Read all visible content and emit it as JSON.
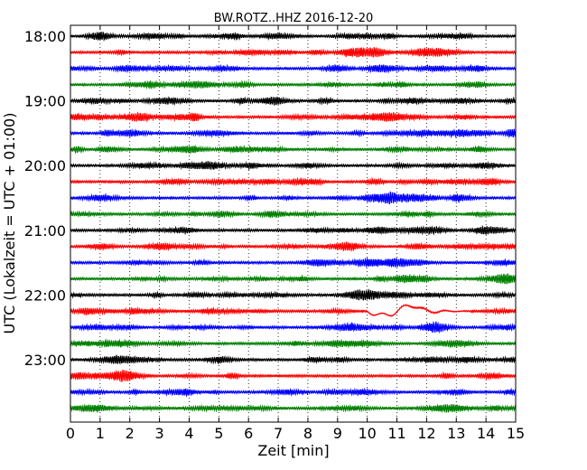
{
  "chart_data": {
    "type": "line",
    "title": "BW.ROTZ..HHZ 2016-12-20",
    "xlabel": "Zeit  [min]",
    "ylabel": "UTC (Lokalzeit = UTC + 01:00)",
    "xlim": [
      0,
      15
    ],
    "x_ticks": [
      "0",
      "1",
      "2",
      "3",
      "4",
      "5",
      "6",
      "7",
      "8",
      "9",
      "10",
      "11",
      "12",
      "13",
      "14",
      "15"
    ],
    "y_tick_labels": [
      "18:00",
      "19:00",
      "20:00",
      "21:00",
      "22:00",
      "23:00"
    ],
    "y_tick_rows": [
      0,
      4,
      8,
      12,
      16,
      20
    ],
    "trace_colors": [
      "#000000",
      "#ff0000",
      "#0000ff",
      "#008000"
    ],
    "traces": [
      {
        "start": "18:00",
        "event": false
      },
      {
        "start": "18:15",
        "event": false
      },
      {
        "start": "18:30",
        "event": false
      },
      {
        "start": "18:45",
        "event": false
      },
      {
        "start": "19:00",
        "event": false
      },
      {
        "start": "19:15",
        "event": false
      },
      {
        "start": "19:30",
        "event": false
      },
      {
        "start": "19:45",
        "event": false
      },
      {
        "start": "20:00",
        "event": false
      },
      {
        "start": "20:15",
        "event": false
      },
      {
        "start": "20:30",
        "event": false
      },
      {
        "start": "20:45",
        "event": false
      },
      {
        "start": "21:00",
        "event": false
      },
      {
        "start": "21:15",
        "event": false
      },
      {
        "start": "21:30",
        "event": false
      },
      {
        "start": "21:45",
        "event": false
      },
      {
        "start": "22:00",
        "event": false
      },
      {
        "start": "22:15",
        "event": true
      },
      {
        "start": "22:30",
        "event": false
      },
      {
        "start": "22:45",
        "event": false
      },
      {
        "start": "23:00",
        "event": false
      },
      {
        "start": "23:15",
        "event": false
      },
      {
        "start": "23:30",
        "event": false
      },
      {
        "start": "23:45",
        "event": false
      }
    ],
    "event": {
      "x_start": 10.0,
      "x_end": 13.5
    },
    "grid": "x-dotted",
    "legend": "none"
  }
}
